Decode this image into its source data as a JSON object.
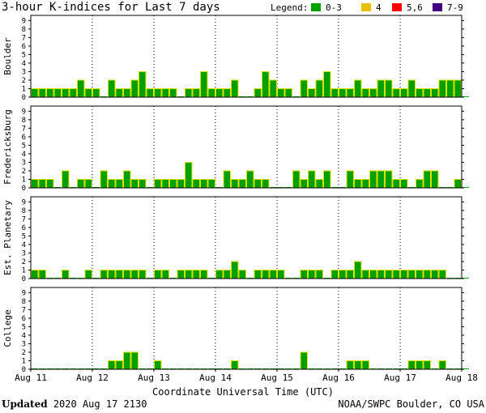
{
  "title": "3-hour K-indices for Last 7 days",
  "legend": {
    "label": "Legend:",
    "items": [
      {
        "label": "0-3",
        "color": "#00a000"
      },
      {
        "label": "4",
        "color": "#e8c000"
      },
      {
        "label": "5,6",
        "color": "#ff0000"
      },
      {
        "label": "7-9",
        "color": "#400080"
      }
    ]
  },
  "colors": {
    "bar_outline": "#e0e000",
    "grid": "#000000"
  },
  "footer": {
    "updated_label": "Updated",
    "updated_value": "2020 Aug 17 2130",
    "credit": "NOAA/SWPC Boulder, CO USA"
  },
  "chart_data": {
    "type": "bar",
    "xlabel": "Coordinate Universal Time (UTC)",
    "x_ticks": [
      "Aug 11",
      "Aug 12",
      "Aug 13",
      "Aug 14",
      "Aug 15",
      "Aug 16",
      "Aug 17",
      "Aug 18"
    ],
    "y_ticks": [
      "0",
      "1",
      "2",
      "3",
      "4",
      "5",
      "6",
      "7",
      "8",
      "9"
    ],
    "ylim": [
      0,
      9
    ],
    "bins_per_day": 8,
    "grid": "vertical dotted lines at day boundaries",
    "series": [
      {
        "name": "Boulder",
        "values": [
          1,
          1,
          1,
          1,
          1,
          1,
          2,
          1,
          1,
          0,
          2,
          1,
          1,
          2,
          3,
          1,
          1,
          1,
          1,
          0,
          1,
          1,
          3,
          1,
          1,
          1,
          2,
          0,
          0,
          1,
          3,
          2,
          1,
          1,
          0,
          2,
          1,
          2,
          3,
          1,
          1,
          1,
          2,
          1,
          1,
          2,
          2,
          1,
          1,
          2,
          1,
          1,
          1,
          2,
          2,
          2,
          0
        ]
      },
      {
        "name": "Fredericksburg",
        "values": [
          1,
          1,
          1,
          0,
          2,
          0,
          1,
          1,
          0,
          2,
          1,
          1,
          2,
          1,
          1,
          0,
          1,
          1,
          1,
          1,
          3,
          1,
          1,
          1,
          0,
          2,
          1,
          1,
          2,
          1,
          1,
          0,
          0,
          0,
          2,
          1,
          2,
          1,
          2,
          0,
          0,
          2,
          1,
          1,
          2,
          2,
          2,
          1,
          1,
          0,
          1,
          2,
          2,
          0,
          0,
          1,
          0
        ]
      },
      {
        "name": "Est. Planetary",
        "values": [
          1,
          1,
          0,
          0,
          1,
          0,
          0,
          1,
          0,
          1,
          1,
          1,
          1,
          1,
          1,
          0,
          1,
          1,
          0,
          1,
          1,
          1,
          1,
          0,
          1,
          1,
          2,
          1,
          0,
          1,
          1,
          1,
          1,
          0,
          0,
          1,
          1,
          1,
          0,
          1,
          1,
          1,
          2,
          1,
          1,
          1,
          1,
          1,
          1,
          1,
          1,
          1,
          1,
          1,
          0,
          0,
          0
        ]
      },
      {
        "name": "College",
        "values": [
          0,
          0,
          0,
          0,
          0,
          0,
          0,
          0,
          0,
          0,
          1,
          1,
          2,
          2,
          0,
          0,
          1,
          0,
          0,
          0,
          0,
          0,
          0,
          0,
          0,
          0,
          1,
          0,
          0,
          0,
          0,
          0,
          0,
          0,
          0,
          2,
          0,
          0,
          0,
          0,
          0,
          1,
          1,
          1,
          0,
          0,
          0,
          0,
          0,
          1,
          1,
          1,
          0,
          1,
          0,
          0,
          0
        ]
      }
    ]
  }
}
